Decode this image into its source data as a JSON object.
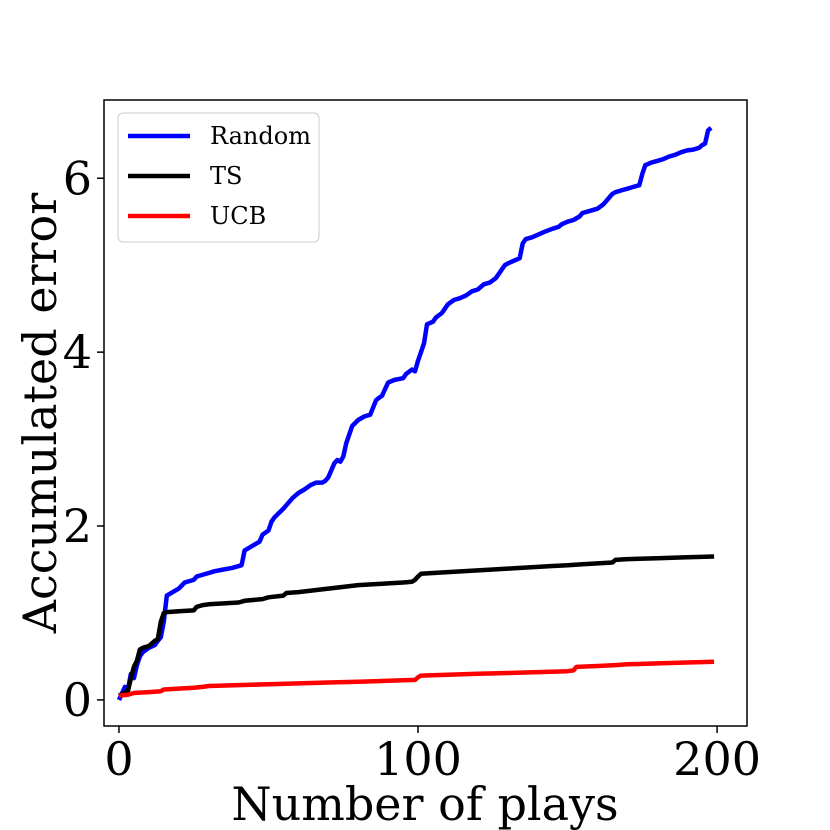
{
  "chart_data": {
    "type": "line",
    "title": "",
    "xlabel": "Number of plays",
    "ylabel": "Accumulated error",
    "xlim": [
      -5,
      210
    ],
    "ylim": [
      -0.3,
      6.9
    ],
    "xticks": [
      0,
      100,
      200
    ],
    "yticks": [
      0,
      2,
      4,
      6
    ],
    "grid": false,
    "legend": "top-left",
    "series": [
      {
        "name": "Random",
        "color": "#0000ff",
        "x": [
          0,
          2,
          3,
          4,
          5,
          6,
          7,
          8,
          10,
          12,
          13,
          14,
          15,
          16,
          17,
          20,
          22,
          25,
          26,
          30,
          32,
          35,
          38,
          41,
          42,
          45,
          47,
          48,
          50,
          51,
          52,
          55,
          57,
          58,
          60,
          62,
          64,
          66,
          68,
          69,
          70,
          72,
          73,
          74,
          75,
          76,
          78,
          80,
          82,
          84,
          86,
          88,
          90,
          92,
          95,
          96,
          98,
          99,
          100,
          101,
          102,
          103,
          105,
          106,
          108,
          109,
          110,
          112,
          114,
          116,
          118,
          120,
          122,
          124,
          126,
          128,
          129,
          130,
          132,
          134,
          135,
          136,
          138,
          140,
          142,
          145,
          147,
          148,
          150,
          152,
          154,
          155,
          157,
          160,
          162,
          164,
          165,
          166,
          168,
          170,
          172,
          174,
          175,
          176,
          178,
          180,
          182,
          184,
          186,
          188,
          190,
          192,
          194,
          195,
          196,
          197,
          198
        ],
        "y": [
          0,
          0.15,
          0.12,
          0.3,
          0.25,
          0.4,
          0.5,
          0.55,
          0.6,
          0.63,
          0.68,
          0.72,
          0.9,
          1.2,
          1.22,
          1.28,
          1.35,
          1.38,
          1.42,
          1.46,
          1.48,
          1.5,
          1.52,
          1.55,
          1.72,
          1.78,
          1.82,
          1.9,
          1.95,
          2.05,
          2.1,
          2.2,
          2.28,
          2.32,
          2.38,
          2.42,
          2.47,
          2.5,
          2.5,
          2.52,
          2.56,
          2.72,
          2.76,
          2.74,
          2.8,
          2.95,
          3.15,
          3.22,
          3.26,
          3.28,
          3.45,
          3.5,
          3.65,
          3.68,
          3.7,
          3.75,
          3.8,
          3.78,
          3.9,
          4.0,
          4.1,
          4.32,
          4.35,
          4.4,
          4.45,
          4.5,
          4.55,
          4.6,
          4.62,
          4.65,
          4.7,
          4.72,
          4.78,
          4.8,
          4.85,
          4.95,
          5.0,
          5.02,
          5.05,
          5.08,
          5.25,
          5.3,
          5.32,
          5.35,
          5.38,
          5.42,
          5.44,
          5.47,
          5.5,
          5.52,
          5.56,
          5.6,
          5.62,
          5.65,
          5.7,
          5.78,
          5.82,
          5.84,
          5.86,
          5.88,
          5.9,
          5.92,
          6.05,
          6.15,
          6.18,
          6.2,
          6.22,
          6.25,
          6.27,
          6.3,
          6.32,
          6.33,
          6.35,
          6.38,
          6.4,
          6.55,
          6.58
        ]
      },
      {
        "name": "TS",
        "color": "#000000",
        "x": [
          0,
          3,
          4,
          5,
          6,
          7,
          8,
          10,
          11,
          12,
          13,
          14,
          15,
          16,
          20,
          25,
          26,
          28,
          30,
          35,
          40,
          42,
          48,
          50,
          55,
          56,
          60,
          65,
          70,
          75,
          80,
          85,
          90,
          95,
          98,
          99,
          100,
          101,
          105,
          110,
          115,
          120,
          125,
          130,
          135,
          140,
          145,
          150,
          155,
          160,
          165,
          166,
          170,
          180,
          190,
          199
        ],
        "y": [
          0.05,
          0.1,
          0.25,
          0.38,
          0.45,
          0.58,
          0.6,
          0.62,
          0.65,
          0.68,
          0.7,
          0.9,
          1.0,
          1.01,
          1.02,
          1.03,
          1.07,
          1.09,
          1.1,
          1.11,
          1.12,
          1.14,
          1.16,
          1.18,
          1.2,
          1.23,
          1.24,
          1.26,
          1.28,
          1.3,
          1.32,
          1.33,
          1.34,
          1.35,
          1.36,
          1.38,
          1.42,
          1.45,
          1.46,
          1.47,
          1.48,
          1.49,
          1.5,
          1.51,
          1.52,
          1.53,
          1.54,
          1.55,
          1.56,
          1.57,
          1.58,
          1.61,
          1.62,
          1.63,
          1.64,
          1.65
        ]
      },
      {
        "name": "UCB",
        "color": "#ff0000",
        "x": [
          0,
          3,
          5,
          10,
          14,
          15,
          20,
          25,
          28,
          30,
          40,
          50,
          60,
          70,
          80,
          90,
          99,
          100,
          101,
          110,
          120,
          130,
          140,
          150,
          152,
          153,
          160,
          166,
          170,
          180,
          190,
          199
        ],
        "y": [
          0.05,
          0.06,
          0.08,
          0.09,
          0.1,
          0.12,
          0.13,
          0.14,
          0.15,
          0.16,
          0.17,
          0.18,
          0.19,
          0.2,
          0.21,
          0.22,
          0.23,
          0.26,
          0.28,
          0.29,
          0.3,
          0.31,
          0.32,
          0.33,
          0.34,
          0.38,
          0.39,
          0.4,
          0.41,
          0.42,
          0.43,
          0.44
        ]
      }
    ]
  }
}
